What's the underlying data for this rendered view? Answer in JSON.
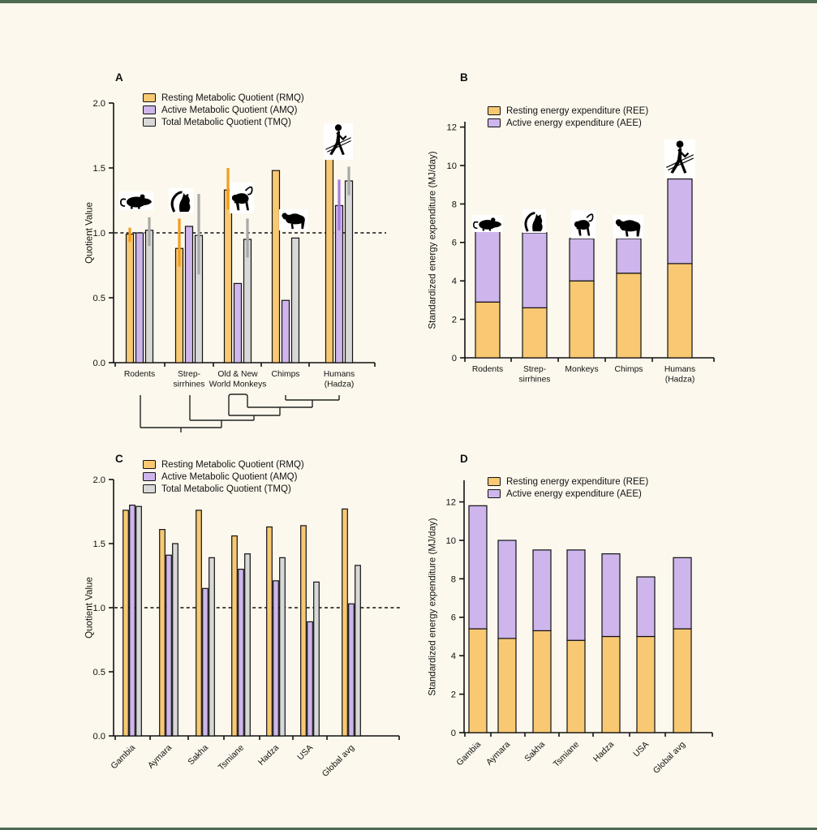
{
  "page": {
    "background": "#FCF8ED",
    "frame_color": "#4C6B50"
  },
  "colors": {
    "rmq_ree_orange": "#F8C873",
    "amq_aee_purple": "#CEB5EB",
    "tmq_gray": "#D8D8D8",
    "error_orange": "#F59C1C",
    "error_purple": "#A97BDF",
    "error_gray": "#A9A9A9",
    "axis_black": "#111111"
  },
  "animal_icons": {
    "panel_a": [
      "rodent-icon",
      "lemur-icon",
      "monkey-icon",
      "chimp-icon",
      "human-icon"
    ],
    "panel_b": [
      "rodent-icon",
      "lemur-icon",
      "monkey-icon",
      "chimp-icon",
      "human-icon"
    ]
  },
  "chart_data": [
    {
      "id": "A",
      "panel_label": "A",
      "type": "bar",
      "ylabel": "Quotient Value",
      "ylim": [
        0,
        2.0
      ],
      "yticks": [
        "0.0",
        "0.5",
        "1.0",
        "1.5",
        "2.0"
      ],
      "reference_line": 1.0,
      "grid": false,
      "legend_position": "top-left-inside",
      "categories": [
        [
          "Rodents"
        ],
        [
          "Strep-",
          "sirrhines"
        ],
        [
          "Old & New",
          "World Monkeys"
        ],
        [
          "Chimps"
        ],
        [
          "Humans",
          "(Hadza)"
        ]
      ],
      "phylogenetic_tree_below_axis": true,
      "series": [
        {
          "name": "Resting Metabolic Quotient (RMQ)",
          "short": "RMQ",
          "color": "#F8C873",
          "error_color": "#F59C1C",
          "values": [
            0.99,
            0.88,
            1.33,
            1.48,
            1.64
          ],
          "errors_low": [
            0.93,
            0.74,
            1.18,
            null,
            1.58
          ],
          "errors_high": [
            1.04,
            1.11,
            1.5,
            null,
            1.68
          ]
        },
        {
          "name": "Active Metabolic Quotient (AMQ)",
          "short": "AMQ",
          "color": "#CEB5EB",
          "error_color": "#A97BDF",
          "values": [
            1.0,
            1.05,
            0.61,
            0.48,
            1.21
          ],
          "errors_low": [
            null,
            null,
            null,
            null,
            1.02
          ],
          "errors_high": [
            null,
            null,
            null,
            null,
            1.41
          ]
        },
        {
          "name": "Total Metabolic Quotient (TMQ)",
          "short": "TMQ",
          "color": "#D8D8D8",
          "error_color": "#A9A9A9",
          "values": [
            1.02,
            0.98,
            0.95,
            0.96,
            1.4
          ],
          "errors_low": [
            0.9,
            0.68,
            0.81,
            null,
            1.29
          ],
          "errors_high": [
            1.12,
            1.3,
            1.11,
            null,
            1.51
          ]
        }
      ]
    },
    {
      "id": "B",
      "panel_label": "B",
      "type": "stacked-bar",
      "ylabel": "Standardized energy expenditure (MJ/day)",
      "ylim": [
        0,
        13
      ],
      "yticks": [
        "0",
        "2",
        "4",
        "6",
        "8",
        "10",
        "12"
      ],
      "grid": false,
      "legend_position": "top-left-inside",
      "categories": [
        [
          "Rodents"
        ],
        [
          "Strep-",
          "sirrhines"
        ],
        [
          "Monkeys"
        ],
        [
          "Chimps"
        ],
        [
          "Humans",
          "(Hadza)"
        ]
      ],
      "series": [
        {
          "name": "Resting energy expenditure (REE)",
          "short": "REE",
          "color": "#F8C873",
          "values": [
            2.9,
            2.6,
            4.0,
            4.4,
            4.9
          ]
        },
        {
          "name": "Active energy expenditure (AEE)",
          "short": "AEE",
          "color": "#CEB5EB",
          "values": [
            3.7,
            3.9,
            2.2,
            1.8,
            4.4
          ]
        }
      ]
    },
    {
      "id": "C",
      "panel_label": "C",
      "type": "bar",
      "ylabel": "Quotient Value",
      "ylim": [
        0,
        2.0
      ],
      "yticks": [
        "0.0",
        "0.5",
        "1.0",
        "1.5",
        "2.0"
      ],
      "reference_line": 1.0,
      "grid": false,
      "legend_position": "top-left-inside",
      "categories": [
        "Gambia",
        "Aymara",
        "Sakha",
        "Tsmiane",
        "Hadza",
        "USA",
        "Global avg"
      ],
      "series": [
        {
          "name": "Resting Metabolic Quotient (RMQ)",
          "short": "RMQ",
          "color": "#F8C873",
          "error_color": "#F59C1C",
          "values": [
            1.76,
            1.61,
            1.76,
            1.56,
            1.63,
            1.64,
            1.77
          ]
        },
        {
          "name": "Active Metabolic Quotient (AMQ)",
          "short": "AMQ",
          "color": "#CEB5EB",
          "error_color": "#A97BDF",
          "values": [
            1.8,
            1.41,
            1.15,
            1.3,
            1.21,
            0.89,
            1.03
          ]
        },
        {
          "name": "Total Metabolic Quotient (TMQ)",
          "short": "TMQ",
          "color": "#D8D8D8",
          "error_color": "#A9A9A9",
          "values": [
            1.79,
            1.5,
            1.39,
            1.42,
            1.39,
            1.2,
            1.33
          ]
        }
      ]
    },
    {
      "id": "D",
      "panel_label": "D",
      "type": "stacked-bar",
      "ylabel": "Standardized energy expenditure (MJ/day)",
      "ylim": [
        0,
        13
      ],
      "yticks": [
        "0",
        "2",
        "4",
        "6",
        "8",
        "10",
        "12"
      ],
      "grid": false,
      "legend_position": "top-left-inside",
      "categories": [
        "Gambia",
        "Aymara",
        "Sakha",
        "Tsmiane",
        "Hadza",
        "USA",
        "Global avg"
      ],
      "series": [
        {
          "name": "Resting energy expenditure (REE)",
          "short": "REE",
          "color": "#F8C873",
          "values": [
            5.4,
            4.9,
            5.3,
            4.8,
            5.0,
            5.0,
            5.4
          ]
        },
        {
          "name": "Active energy expenditure (AEE)",
          "short": "AEE",
          "color": "#CEB5EB",
          "values": [
            6.4,
            5.1,
            4.2,
            4.7,
            4.3,
            3.1,
            3.7
          ]
        }
      ]
    }
  ]
}
